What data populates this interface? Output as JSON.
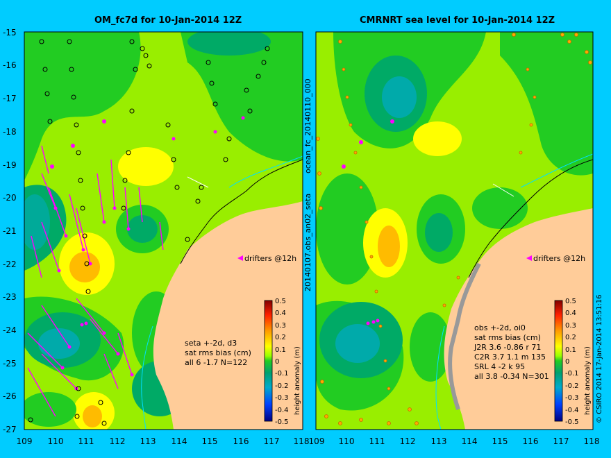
{
  "maps": [
    {
      "title": "OM_fc7d for 10-Jan-2014 12Z",
      "drifters_label": "drifters @12h",
      "stats_lines": [
        "seta +-2d, d3",
        "sat rms bias (cm)",
        "all 6 -1.7 N=122"
      ]
    },
    {
      "title": "CMRNRT sea level  for 10-Jan-2014 12Z",
      "drifters_label": "drifters @12h",
      "stats_lines": [
        "obs +-2d, oi0",
        "sat rms bias (cm)",
        "J2R   3.6 -0.86 r 71",
        "C2R   3.7 1.1 m 135",
        "SRL    4 -2 k 95",
        "all   3.8 -0.34 N=301"
      ]
    }
  ],
  "axes": {
    "lat_ticks": [
      "-15",
      "-16",
      "-17",
      "-18",
      "-19",
      "-20",
      "-21",
      "-22",
      "-23",
      "-24",
      "-25",
      "-26",
      "-27"
    ],
    "lon_ticks_left": [
      "109",
      "110",
      "111",
      "112",
      "113",
      "114",
      "115",
      "116",
      "117",
      "118"
    ],
    "lon_ticks_right": [
      "109",
      "110",
      "111",
      "112",
      "113",
      "114",
      "115",
      "116",
      "117",
      "118"
    ]
  },
  "colorbar": {
    "label": "height anomaly (m)",
    "ticks": [
      "0.5",
      "0.4",
      "0.3",
      "0.2",
      "0.1",
      "0",
      "-0.1",
      "-0.2",
      "-0.3",
      "-0.4",
      "-0.5"
    ]
  },
  "side_labels": {
    "run_id": "20140107.obs_an02_seta",
    "forecast_id": "ocean_fc_20140110_000",
    "credit": "© CSIRO 2014   17-Jan-2014 13:51:16"
  },
  "colors": {
    "background": "#00ccff",
    "land": "#ffcc99",
    "drifter": "#ff00ff",
    "coast": "#00e0ff"
  }
}
